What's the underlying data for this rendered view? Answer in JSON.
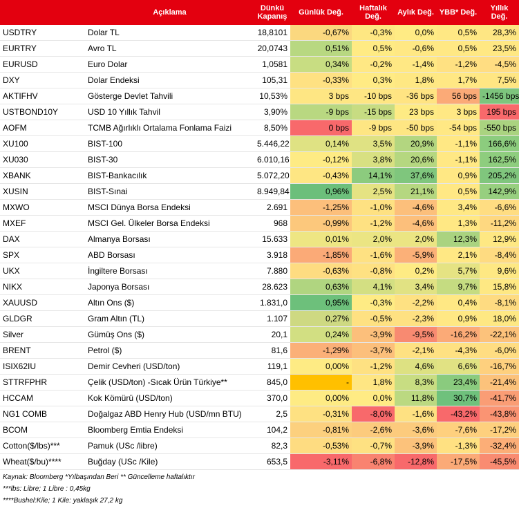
{
  "headers": [
    "",
    "Açıklama",
    "Dünkü Kapanış",
    "Günlük Değ.",
    "Haftalık Değ.",
    "Aylık Değ.",
    "YBB* Değ.",
    "Yıllık Değ."
  ],
  "rows": [
    {
      "code": "USDTRY",
      "desc": "Dolar TL",
      "close": "18,8101",
      "vals": [
        "-0,67%",
        "-0,3%",
        "0,0%",
        "0,5%",
        "28,3%"
      ],
      "colors": [
        "#fbd87f",
        "#fee782",
        "#ffeb84",
        "#ffe884",
        "#fee683"
      ]
    },
    {
      "code": "EURTRY",
      "desc": "Avro TL",
      "close": "20,0743",
      "vals": [
        "0,51%",
        "0,5%",
        "-0,6%",
        "0,5%",
        "23,5%"
      ],
      "colors": [
        "#b8d881",
        "#ffeb84",
        "#ffe884",
        "#ffe884",
        "#ffe883"
      ]
    },
    {
      "code": "EURUSD",
      "desc": "Euro Dolar",
      "close": "1,0581",
      "vals": [
        "0,34%",
        "-0,2%",
        "-1,4%",
        "-1,2%",
        "-4,5%"
      ],
      "colors": [
        "#c8dd82",
        "#ffe884",
        "#ffe884",
        "#ffe182",
        "#ffdd82"
      ]
    },
    {
      "code": "DXY",
      "desc": "Dolar Endeksi",
      "close": "105,31",
      "vals": [
        "-0,33%",
        "0,3%",
        "1,8%",
        "1,7%",
        "7,5%"
      ],
      "colors": [
        "#fee182",
        "#ffeb84",
        "#fee883",
        "#ffe884",
        "#ffe683"
      ]
    },
    {
      "code": "AKTIFHV",
      "desc": "Gösterge Devlet Tahvili",
      "close": "10,53%",
      "vals": [
        "3 bps",
        "-10 bps",
        "-36 bps",
        "56 bps",
        "-1456 bps"
      ],
      "colors": [
        "#fee683",
        "#fee683",
        "#ffe482",
        "#fbaa77",
        "#7dc57d"
      ]
    },
    {
      "code": "USTBOND10Y",
      "desc": "USD 10 Yıllık Tahvil",
      "close": "3,90%",
      "vals": [
        "-9 bps",
        "-15 bps",
        "23 bps",
        "3 bps",
        "195 bps"
      ],
      "colors": [
        "#b9d881",
        "#c7dc82",
        "#feeb84",
        "#ffe884",
        "#f8696b"
      ]
    },
    {
      "code": "AOFM",
      "desc": "TCMB Ağırlıklı Ortalama Fonlama Faizi",
      "close": "8,50%",
      "vals": [
        "0 bps",
        "-9 bps",
        "-50 bps",
        "-54 bps",
        "-550 bps"
      ],
      "colors": [
        "#f8696b",
        "#fee683",
        "#fee683",
        "#ffe884",
        "#aad380"
      ]
    },
    {
      "code": "XU100",
      "desc": "BIST-100",
      "close": "5.446,22",
      "vals": [
        "0,14%",
        "3,5%",
        "20,9%",
        "-1,1%",
        "166,6%"
      ],
      "colors": [
        "#dfe283",
        "#dfe283",
        "#b3d680",
        "#ffe884",
        "#8ccc7e"
      ]
    },
    {
      "code": "XU030",
      "desc": "BIST-30",
      "close": "6.010,16",
      "vals": [
        "-0,12%",
        "3,8%",
        "20,6%",
        "-1,1%",
        "162,5%"
      ],
      "colors": [
        "#feeb84",
        "#d8e082",
        "#b5d780",
        "#ffe884",
        "#8ecd7e"
      ]
    },
    {
      "code": "XBANK",
      "desc": "BIST-Bankacılık",
      "close": "5.072,20",
      "vals": [
        "-0,43%",
        "14,1%",
        "37,6%",
        "0,9%",
        "205,2%"
      ],
      "colors": [
        "#fee683",
        "#8ccb7e",
        "#7fc67d",
        "#ffe884",
        "#80c67d"
      ]
    },
    {
      "code": "XUSIN",
      "desc": "BIST-Sınai",
      "close": "8.949,84",
      "vals": [
        "0,96%",
        "2,5%",
        "21,1%",
        "0,5%",
        "142,9%"
      ],
      "colors": [
        "#6cbf7b",
        "#e5e383",
        "#b5d780",
        "#ffe884",
        "#97cf7f"
      ]
    },
    {
      "code": "MXWO",
      "desc": "MSCI Dünya Borsa Endeksi",
      "close": "2.691",
      "vals": [
        "-1,25%",
        "-1,0%",
        "-4,6%",
        "3,4%",
        "-6,6%"
      ],
      "colors": [
        "#fcbf7b",
        "#fee182",
        "#fcbf7b",
        "#ffe884",
        "#ffdd82"
      ]
    },
    {
      "code": "MXEF",
      "desc": "MSCI Gel. Ülkeler Borsa Endeksi",
      "close": "968",
      "vals": [
        "-0,99%",
        "-1,2%",
        "-4,6%",
        "1,3%",
        "-11,2%"
      ],
      "colors": [
        "#fcc87c",
        "#fee182",
        "#fcbf7b",
        "#ffe884",
        "#fed880"
      ]
    },
    {
      "code": "DAX",
      "desc": "Almanya Borsası",
      "close": "15.633",
      "vals": [
        "0,01%",
        "2,0%",
        "2,0%",
        "12,3%",
        "12,9%"
      ],
      "colors": [
        "#eee683",
        "#ebe583",
        "#ebe583",
        "#aad380",
        "#fee883"
      ]
    },
    {
      "code": "SPX",
      "desc": "ABD Borsası",
      "close": "3.918",
      "vals": [
        "-1,85%",
        "-1,6%",
        "-5,9%",
        "2,1%",
        "-8,4%"
      ],
      "colors": [
        "#fbaa77",
        "#fee182",
        "#fbb078",
        "#ffe884",
        "#fedb81"
      ]
    },
    {
      "code": "UKX",
      "desc": "İngiltere Borsası",
      "close": "7.880",
      "vals": [
        "-0,63%",
        "-0,8%",
        "0,2%",
        "5,7%",
        "9,6%"
      ],
      "colors": [
        "#fedc81",
        "#fee182",
        "#feeb84",
        "#e5e383",
        "#fee883"
      ]
    },
    {
      "code": "NIKX",
      "desc": "Japonya Borsası",
      "close": "28.623",
      "vals": [
        "0,63%",
        "4,1%",
        "3,4%",
        "9,7%",
        "15,8%"
      ],
      "colors": [
        "#b0d580",
        "#d3df82",
        "#e1e283",
        "#c5dc81",
        "#fee883"
      ]
    },
    {
      "code": "XAUUSD",
      "desc": "Altın Ons ($)",
      "close": "1.831,0",
      "vals": [
        "0,95%",
        "-0,3%",
        "-2,2%",
        "0,4%",
        "-8,1%"
      ],
      "colors": [
        "#6dc07b",
        "#feeb84",
        "#fee182",
        "#ffe884",
        "#fedb81"
      ]
    },
    {
      "code": "GLDGR",
      "desc": "Gram Altın (TL)",
      "close": "1.107",
      "vals": [
        "0,27%",
        "-0,5%",
        "-2,3%",
        "0,9%",
        "18,0%"
      ],
      "colors": [
        "#ced982",
        "#fee182",
        "#fee182",
        "#ffe884",
        "#fee883"
      ]
    },
    {
      "code": "Silver",
      "desc": "Gümüş Ons ($)",
      "close": "20,1",
      "vals": [
        "0,24%",
        "-3,9%",
        "-9,5%",
        "-16,2%",
        "-22,1%"
      ],
      "colors": [
        "#d2df82",
        "#fcbf7b",
        "#f88a71",
        "#fbaa77",
        "#fcc27b"
      ]
    },
    {
      "code": "BRENT",
      "desc": "Petrol ($)",
      "close": "81,6",
      "vals": [
        "-1,29%",
        "-3,7%",
        "-2,1%",
        "-4,3%",
        "-6,0%"
      ],
      "colors": [
        "#fbb078",
        "#fcbf7b",
        "#fee182",
        "#fee182",
        "#ffdd82"
      ]
    },
    {
      "code": "ISIX62IU",
      "desc": "Demir Cevheri (USD/ton)",
      "close": "119,1",
      "vals": [
        "0,00%",
        "-1,2%",
        "4,6%",
        "6,6%",
        "-16,7%"
      ],
      "colors": [
        "#feeb84",
        "#fee182",
        "#dde182",
        "#e1e283",
        "#fed07e"
      ]
    },
    {
      "code": "STTRFPHR",
      "desc": "Çelik (USD/ton) -Sıcak Ürün Türkiye**",
      "close": "845,0",
      "vals": [
        "-",
        "1,8%",
        "8,3%",
        "23,4%",
        "-21,4%"
      ],
      "colors": [
        "#ffc000",
        "#fee683",
        "#c8dd82",
        "#8acb7e",
        "#fcc27b"
      ]
    },
    {
      "code": "HCCAM",
      "desc": "Kok Kömürü (USD/ton)",
      "close": "370,0",
      "vals": [
        "0,00%",
        "0,0%",
        "11,8%",
        "30,7%",
        "-41,7%"
      ],
      "colors": [
        "#feeb84",
        "#ffeb84",
        "#bbd981",
        "#6fc17c",
        "#fa9d75"
      ]
    },
    {
      "code": "NG1 COMB",
      "desc": "Doğalgaz ABD Henry Hub (USD/mn BTU)",
      "close": "2,5",
      "vals": [
        "-0,31%",
        "-8,0%",
        "-1,6%",
        "-43,2%",
        "-43,8%"
      ],
      "colors": [
        "#fee182",
        "#f8696b",
        "#fee182",
        "#f8696b",
        "#fa9473"
      ]
    },
    {
      "code": "BCOM",
      "desc": "Bloomberg Emtia Endeksi",
      "close": "104,2",
      "vals": [
        "-0,81%",
        "-2,6%",
        "-3,6%",
        "-7,6%",
        "-17,2%"
      ],
      "colors": [
        "#fcd07e",
        "#fccb7d",
        "#fccb7d",
        "#fed07e",
        "#fed07e"
      ]
    },
    {
      "code": "Cotton($/lbs)***",
      "desc": "Pamuk (USc /libre)",
      "close": "82,3",
      "vals": [
        "-0,53%",
        "-0,7%",
        "-3,9%",
        "-1,3%",
        "-32,4%"
      ],
      "colors": [
        "#fedc81",
        "#fee182",
        "#fcc27b",
        "#ffe182",
        "#fcae77"
      ]
    },
    {
      "code": "Wheat($/bu)****",
      "desc": "Buğday (USc /Kile)",
      "close": "653,5",
      "vals": [
        "-3,11%",
        "-6,8%",
        "-12,8%",
        "-17,5%",
        "-45,5%"
      ],
      "colors": [
        "#f8696b",
        "#f98370",
        "#f8696b",
        "#fbaa77",
        "#f98b71"
      ]
    }
  ],
  "notes": [
    "Kaynak: Bloomberg *Yılbaşından Beri  ** Güncelleme haftalıktır",
    "***lbs: Libre; 1 Libre : 0,45kg",
    "****Bushel:Kile; 1 Kile: yaklaşık 27,2 kg"
  ]
}
